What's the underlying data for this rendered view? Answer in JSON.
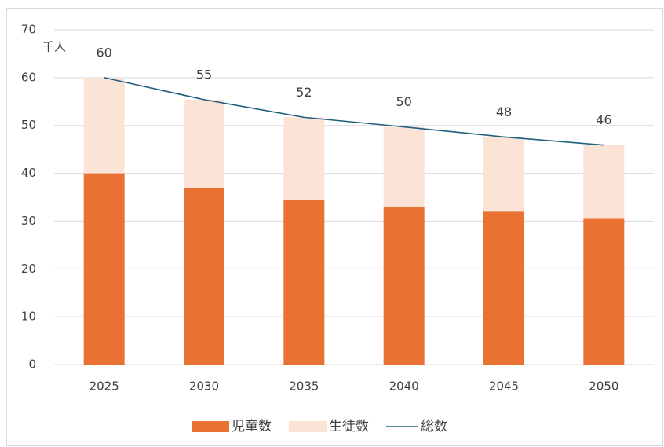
{
  "chart_data": {
    "type": "bar",
    "stacked": true,
    "y_unit_label": "千人",
    "categories": [
      "2025",
      "2030",
      "2035",
      "2040",
      "2045",
      "2050"
    ],
    "series": [
      {
        "name": "児童数",
        "type": "bar",
        "color": "#e97132",
        "values": [
          40,
          37,
          34.5,
          33,
          32,
          30.5
        ]
      },
      {
        "name": "生徒数",
        "type": "bar",
        "color": "#fbe3d6",
        "values": [
          20,
          18.4,
          17.2,
          16.7,
          15.6,
          15.4
        ]
      },
      {
        "name": "総数",
        "type": "line",
        "color": "#1f5f7f",
        "values": [
          60,
          55.4,
          51.7,
          49.7,
          47.6,
          45.9
        ],
        "value_labels": [
          "60",
          "55",
          "52",
          "50",
          "48",
          "46"
        ]
      }
    ],
    "ylim": [
      0,
      70
    ],
    "yticks": [
      0,
      10,
      20,
      30,
      40,
      50,
      60,
      70
    ],
    "grid": true,
    "legend": "bottom"
  }
}
